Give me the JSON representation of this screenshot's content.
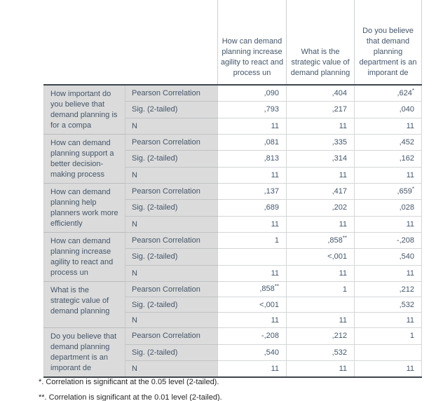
{
  "table": {
    "kind": "spss-correlations",
    "columns": [
      "How can demand planning increase agility to react and process un",
      "What is the strategic value of demand planning",
      "Do you believe that demand planning department is an imporant de"
    ],
    "statistic_labels": [
      "Pearson Correlation",
      "Sig. (2-tailed)",
      "N"
    ],
    "groups": [
      {
        "label": "How important do you believe that demand planning is for a compa",
        "rows": [
          {
            "stat": "Pearson Correlation",
            "values": [
              ",090",
              ",404",
              {
                "t": ",624",
                "sup": "*"
              }
            ]
          },
          {
            "stat": "Sig. (2-tailed)",
            "values": [
              ",793",
              ",217",
              ",040"
            ]
          },
          {
            "stat": "N",
            "values": [
              "11",
              "11",
              "11"
            ]
          }
        ]
      },
      {
        "label": "How can demand planning support a better decision-making process",
        "rows": [
          {
            "stat": "Pearson Correlation",
            "values": [
              ",081",
              ",335",
              ",452"
            ]
          },
          {
            "stat": "Sig. (2-tailed)",
            "values": [
              ",813",
              ",314",
              ",162"
            ]
          },
          {
            "stat": "N",
            "values": [
              "11",
              "11",
              "11"
            ]
          }
        ]
      },
      {
        "label": "How can demand planning help planners work more efficiently",
        "rows": [
          {
            "stat": "Pearson Correlation",
            "values": [
              ",137",
              ",417",
              {
                "t": ",659",
                "sup": "*"
              }
            ]
          },
          {
            "stat": "Sig. (2-tailed)",
            "values": [
              ",689",
              ",202",
              ",028"
            ]
          },
          {
            "stat": "N",
            "values": [
              "11",
              "11",
              "11"
            ]
          }
        ]
      },
      {
        "label": "How can demand planning increase agility to react and process un",
        "rows": [
          {
            "stat": "Pearson Correlation",
            "values": [
              "1",
              {
                "t": ",858",
                "sup": "**"
              },
              "-,208"
            ]
          },
          {
            "stat": "Sig. (2-tailed)",
            "values": [
              "",
              "<,001",
              ",540"
            ]
          },
          {
            "stat": "N",
            "values": [
              "11",
              "11",
              "11"
            ]
          }
        ]
      },
      {
        "label": "What is the strategic value of demand planning",
        "rows": [
          {
            "stat": "Pearson Correlation",
            "values": [
              {
                "t": ",858",
                "sup": "**"
              },
              "1",
              ",212"
            ]
          },
          {
            "stat": "Sig. (2-tailed)",
            "values": [
              "<,001",
              "",
              ",532"
            ]
          },
          {
            "stat": "N",
            "values": [
              "11",
              "11",
              "11"
            ]
          }
        ]
      },
      {
        "label": "Do you believe that demand planning department is an imporant de",
        "rows": [
          {
            "stat": "Pearson Correlation",
            "values": [
              "-,208",
              ",212",
              "1"
            ]
          },
          {
            "stat": "Sig. (2-tailed)",
            "values": [
              ",540",
              ",532",
              ""
            ]
          },
          {
            "stat": "N",
            "values": [
              "11",
              "11",
              "11"
            ]
          }
        ]
      }
    ],
    "footnotes": [
      "*. Correlation is significant at the 0.05 level (2-tailed).",
      "**. Correlation is significant at the 0.01 level (2-tailed)."
    ]
  },
  "colors": {
    "table_text": "#44566a",
    "label_background": "#dbdbdb",
    "frame_border": "#3d454d",
    "grid_border": "#d4d6d8",
    "footnote_text": "#252525"
  }
}
